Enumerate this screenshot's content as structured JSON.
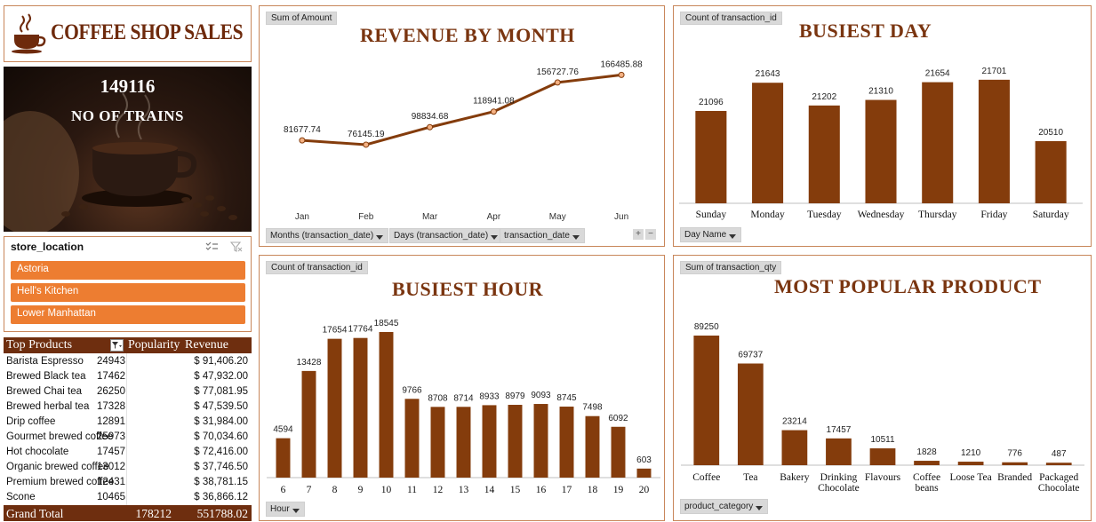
{
  "header": {
    "title": "COFFEE SHOP SALES"
  },
  "kpi": {
    "value": "149116",
    "label": "NO OF TRAINS"
  },
  "slicer": {
    "title": "store_location",
    "items": [
      "Astoria",
      "Hell's Kitchen",
      "Lower Manhattan"
    ]
  },
  "table": {
    "headers": [
      "Top Products",
      "Popularity",
      "Revenue"
    ],
    "rows": [
      {
        "name": "Barista Espresso",
        "pop": "24943",
        "rev": "$ 91,406.20"
      },
      {
        "name": "Brewed Black tea",
        "pop": "17462",
        "rev": "$ 47,932.00"
      },
      {
        "name": "Brewed Chai tea",
        "pop": "26250",
        "rev": "$ 77,081.95"
      },
      {
        "name": "Brewed herbal tea",
        "pop": "17328",
        "rev": "$ 47,539.50"
      },
      {
        "name": "Drip coffee",
        "pop": "12891",
        "rev": "$ 31,984.00"
      },
      {
        "name": "Gourmet brewed coffee",
        "pop": "25973",
        "rev": "$ 70,034.60"
      },
      {
        "name": "Hot chocolate",
        "pop": "17457",
        "rev": "$ 72,416.00"
      },
      {
        "name": "Organic brewed coffee",
        "pop": "13012",
        "rev": "$ 37,746.50"
      },
      {
        "name": "Premium brewed coffee",
        "pop": "12431",
        "rev": "$ 38,781.15"
      },
      {
        "name": "Scone",
        "pop": "10465",
        "rev": "$ 36,866.12"
      }
    ],
    "grand": {
      "label": "Grand Total",
      "pop": "178212",
      "rev": "551788.02"
    }
  },
  "colors": {
    "bar": "#843c0c",
    "accent": "#ed7d31",
    "title": "#7a3510"
  },
  "chart_data": [
    {
      "id": "revenue",
      "type": "line",
      "tag": "Sum of Amount",
      "title": "REVENUE BY MONTH",
      "categories": [
        "Jan",
        "Feb",
        "Mar",
        "Apr",
        "May",
        "Jun"
      ],
      "values": [
        81677.74,
        76145.19,
        98834.68,
        118941.08,
        156727.76,
        166485.88
      ],
      "labels": [
        "81677.74",
        "76145.19",
        "98834.68",
        "118941.08",
        "156727.76",
        "166485.88"
      ],
      "filters": [
        "Months (transaction_date)",
        "Days (transaction_date)",
        "transaction_date"
      ],
      "ylim": [
        60000,
        175000
      ]
    },
    {
      "id": "day",
      "type": "bar",
      "tag": "Count of transaction_id",
      "title": "BUSIEST DAY",
      "categories": [
        "Sunday",
        "Monday",
        "Tuesday",
        "Wednesday",
        "Thursday",
        "Friday",
        "Saturday"
      ],
      "values": [
        21096,
        21643,
        21202,
        21310,
        21654,
        21701,
        20510
      ],
      "filter": "Day Name",
      "ylim": [
        20200,
        21750
      ]
    },
    {
      "id": "hour",
      "type": "bar",
      "tag": "Count of transaction_id",
      "title": "BUSIEST HOUR",
      "categories": [
        "6",
        "7",
        "8",
        "9",
        "10",
        "11",
        "12",
        "13",
        "14",
        "15",
        "16",
        "17",
        "18",
        "19",
        "20"
      ],
      "values": [
        4594,
        13428,
        17654,
        17764,
        18545,
        9766,
        8708,
        8714,
        8933,
        8979,
        9093,
        8745,
        7498,
        6092,
        603
      ],
      "filter": "Hour",
      "ylim": [
        0,
        18545
      ]
    },
    {
      "id": "product",
      "type": "bar",
      "tag": "Sum of transaction_qty",
      "title": "MOST POPULAR PRODUCT",
      "categories": [
        [
          "Coffee"
        ],
        [
          "Tea"
        ],
        [
          "Bakery"
        ],
        [
          "Drinking",
          "Chocolate"
        ],
        [
          "Flavours"
        ],
        [
          "Coffee",
          "beans"
        ],
        [
          "Loose Tea"
        ],
        [
          "Branded"
        ],
        [
          "Packaged",
          "Chocolate"
        ]
      ],
      "values": [
        89250,
        69737,
        23214,
        17457,
        10511,
        1828,
        1210,
        776,
        487
      ],
      "filter": "product_category",
      "ylim": [
        0,
        89250
      ]
    }
  ]
}
